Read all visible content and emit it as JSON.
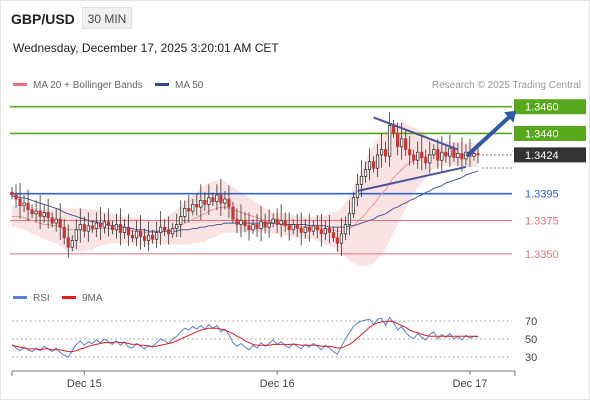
{
  "header": {
    "pair": "GBP/USD",
    "timeframe": "30 MIN"
  },
  "datetime": "Wednesday, December 17, 2025 3:20:01 AM CET",
  "legend": {
    "bollinger": "MA 20 + Bollinger Bands",
    "ma50": "MA 50",
    "credit": "Research © 2025 Trading Central"
  },
  "colors": {
    "resistance": "#58a81c",
    "support_blue": "#2c64e0",
    "support_red": "#e8707a",
    "band_fill": "#fbd9d9",
    "ma20": "#e89898",
    "ma50": "#4f5b92",
    "arrow": "#2e5aa8",
    "current": "#333333",
    "candle_up": "#222222",
    "candle_down": "#cc3333",
    "rsi": "#5b7fd6",
    "rsi_ma": "#e02020"
  },
  "rsi_legend": {
    "rsi": "RSI",
    "ma": "9MA"
  },
  "chart_data": [
    {
      "type": "candlestick",
      "title": "GBP/USD 30 MIN",
      "ylim": [
        1.3332,
        1.3468
      ],
      "levels": [
        {
          "value": 1.346,
          "label": "1.3460",
          "kind": "resistance"
        },
        {
          "value": 1.344,
          "label": "1.3440",
          "kind": "resistance"
        },
        {
          "value": 1.3424,
          "label": "1.3424",
          "kind": "current"
        },
        {
          "value": 1.3395,
          "label": "1.3395",
          "kind": "support_blue"
        },
        {
          "value": 1.3375,
          "label": "1.3375",
          "kind": "support_red"
        },
        {
          "value": 1.335,
          "label": "1.3350",
          "kind": "support_red"
        }
      ],
      "x_ticks": [
        {
          "index": 18,
          "label": "Dec 15"
        },
        {
          "index": 66,
          "label": "Dec 16"
        },
        {
          "index": 114,
          "label": "Dec 17"
        }
      ],
      "closes": [
        1.3394,
        1.3391,
        1.3386,
        1.3388,
        1.3383,
        1.338,
        1.3382,
        1.3378,
        1.3381,
        1.3377,
        1.3373,
        1.3376,
        1.337,
        1.3362,
        1.3355,
        1.336,
        1.3368,
        1.3372,
        1.3367,
        1.3371,
        1.3369,
        1.3373,
        1.337,
        1.3374,
        1.3371,
        1.3368,
        1.3372,
        1.3366,
        1.337,
        1.3364,
        1.3362,
        1.3367,
        1.3363,
        1.336,
        1.3364,
        1.3361,
        1.3366,
        1.337,
        1.3368,
        1.3365,
        1.3369,
        1.3372,
        1.3378,
        1.3384,
        1.3382,
        1.3387,
        1.3385,
        1.339,
        1.3387,
        1.3392,
        1.3389,
        1.3394,
        1.3388,
        1.3391,
        1.3385,
        1.3376,
        1.3372,
        1.3375,
        1.3371,
        1.3368,
        1.3372,
        1.3369,
        1.3374,
        1.337,
        1.3373,
        1.3376,
        1.3372,
        1.3375,
        1.3371,
        1.3368,
        1.3372,
        1.3369,
        1.3366,
        1.337,
        1.3367,
        1.3371,
        1.3368,
        1.3365,
        1.3369,
        1.3366,
        1.3362,
        1.3358,
        1.3365,
        1.3372,
        1.338,
        1.3392,
        1.3402,
        1.3408,
        1.3413,
        1.3419,
        1.3414,
        1.3424,
        1.3428,
        1.3423,
        1.3446,
        1.344,
        1.343,
        1.3436,
        1.3428,
        1.3424,
        1.342,
        1.3426,
        1.3422,
        1.3418,
        1.3424,
        1.3428,
        1.342,
        1.3426,
        1.3423,
        1.3429,
        1.3422,
        1.3425,
        1.3421,
        1.3426,
        1.3423,
        1.3425,
        1.3424
      ],
      "ma20": [
        1.3378,
        1.3378,
        1.3378,
        1.3377,
        1.3376,
        1.3375,
        1.3374,
        1.3373,
        1.3372,
        1.3372,
        1.3371,
        1.3371,
        1.337,
        1.3369,
        1.3368,
        1.3368,
        1.3368,
        1.3368,
        1.3368,
        1.3368,
        1.3368,
        1.3369,
        1.3369,
        1.3369,
        1.3369,
        1.3369,
        1.3369,
        1.3368,
        1.3368,
        1.3368,
        1.3367,
        1.3367,
        1.3367,
        1.3366,
        1.3366,
        1.3366,
        1.3366,
        1.3367,
        1.3367,
        1.3368,
        1.3369,
        1.337,
        1.3371,
        1.3373,
        1.3374,
        1.3376,
        1.3377,
        1.3379,
        1.338,
        1.3382,
        1.3383,
        1.3384,
        1.3385,
        1.3385,
        1.3384,
        1.3383,
        1.3382,
        1.3381,
        1.338,
        1.3379,
        1.3378,
        1.3377,
        1.3376,
        1.3375,
        1.3374,
        1.3373,
        1.3373,
        1.3372,
        1.3372,
        1.3371,
        1.3371,
        1.337,
        1.337,
        1.337,
        1.3369,
        1.3369,
        1.3369,
        1.3369,
        1.3368,
        1.3368,
        1.3368,
        1.3367,
        1.3367,
        1.3368,
        1.3369,
        1.3371,
        1.3374,
        1.3377,
        1.338,
        1.3384,
        1.3387,
        1.3391,
        1.3395,
        1.3398,
        1.3403,
        1.3407,
        1.341,
        1.3413,
        1.3416,
        1.3418,
        1.342,
        1.3421,
        1.3422,
        1.3423,
        1.3424,
        1.3425,
        1.3425,
        1.3425,
        1.3425,
        1.3425,
        1.3425,
        1.3425,
        1.3424,
        1.3424,
        1.3424,
        1.3424,
        1.3424
      ],
      "ma50": [
        1.3393,
        1.3393,
        1.3392,
        1.3392,
        1.3391,
        1.339,
        1.3389,
        1.3388,
        1.3387,
        1.3386,
        1.3385,
        1.3384,
        1.3383,
        1.3381,
        1.338,
        1.3379,
        1.3378,
        1.3377,
        1.3376,
        1.3375,
        1.3374,
        1.3374,
        1.3373,
        1.3372,
        1.3372,
        1.3371,
        1.3371,
        1.337,
        1.337,
        1.3369,
        1.3369,
        1.3368,
        1.3368,
        1.3368,
        1.3367,
        1.3367,
        1.3367,
        1.3367,
        1.3367,
        1.3367,
        1.3367,
        1.3367,
        1.3368,
        1.3368,
        1.3368,
        1.3369,
        1.3369,
        1.337,
        1.337,
        1.3371,
        1.3371,
        1.3372,
        1.3372,
        1.3373,
        1.3373,
        1.3373,
        1.3373,
        1.3373,
        1.3373,
        1.3373,
        1.3373,
        1.3373,
        1.3373,
        1.3373,
        1.3373,
        1.3373,
        1.3373,
        1.3373,
        1.3372,
        1.3372,
        1.3372,
        1.3372,
        1.3372,
        1.3372,
        1.3371,
        1.3371,
        1.3371,
        1.3371,
        1.3371,
        1.337,
        1.337,
        1.337,
        1.337,
        1.337,
        1.3371,
        1.3371,
        1.3372,
        1.3373,
        1.3374,
        1.3375,
        1.3376,
        1.3378,
        1.3379,
        1.338,
        1.3382,
        1.3384,
        1.3385,
        1.3387,
        1.3388,
        1.339,
        1.3391,
        1.3393,
        1.3394,
        1.3396,
        1.3397,
        1.3399,
        1.34,
        1.3401,
        1.3403,
        1.3404,
        1.3405,
        1.3406,
        1.3407,
        1.3409,
        1.341,
        1.3411,
        1.3412
      ],
      "band_width": [
        0.0008,
        0.0008,
        0.0009,
        0.0009,
        0.0009,
        0.001,
        0.001,
        0.0011,
        0.0011,
        0.0012,
        0.0012,
        0.0013,
        0.0014,
        0.0015,
        0.0016,
        0.0016,
        0.0016,
        0.0016,
        0.0016,
        0.0015,
        0.0015,
        0.0014,
        0.0013,
        0.0012,
        0.0012,
        0.0011,
        0.0011,
        0.001,
        0.001,
        0.001,
        0.001,
        0.001,
        0.001,
        0.001,
        0.0009,
        0.0009,
        0.0009,
        0.0009,
        0.001,
        0.0011,
        0.0012,
        0.0013,
        0.0014,
        0.0016,
        0.0017,
        0.0018,
        0.0019,
        0.002,
        0.0021,
        0.0021,
        0.0021,
        0.0021,
        0.002,
        0.0019,
        0.0018,
        0.0017,
        0.0016,
        0.0015,
        0.0014,
        0.0013,
        0.0012,
        0.0011,
        0.001,
        0.0009,
        0.0009,
        0.0008,
        0.0008,
        0.0008,
        0.0008,
        0.0008,
        0.0008,
        0.0008,
        0.0008,
        0.0008,
        0.0008,
        0.0008,
        0.0009,
        0.001,
        0.0011,
        0.0012,
        0.0013,
        0.0015,
        0.0017,
        0.002,
        0.0024,
        0.0028,
        0.0032,
        0.0036,
        0.0039,
        0.0042,
        0.0044,
        0.0045,
        0.0045,
        0.0044,
        0.0043,
        0.0041,
        0.0038,
        0.0035,
        0.0032,
        0.0028,
        0.0025,
        0.0022,
        0.0019,
        0.0016,
        0.0013,
        0.0011,
        0.001,
        0.0009,
        0.0009,
        0.0009,
        0.0009,
        0.0009,
        0.0009,
        0.0009,
        0.0009,
        0.0009,
        0.0009
      ],
      "triangle": {
        "upper": [
          [
            90,
            1.3452
          ],
          [
            111,
            1.3428
          ]
        ],
        "lower": [
          [
            86,
            1.3397
          ],
          [
            113,
            1.3415
          ]
        ]
      },
      "forecast_arrow": [
        [
          113,
          1.3424
        ],
        [
          120,
          1.3457
        ]
      ]
    },
    {
      "type": "line",
      "title": "RSI",
      "ylim": [
        20,
        80
      ],
      "y_ticks": [
        30,
        50,
        70
      ],
      "guides": [
        70,
        50,
        30
      ],
      "rsi": [
        44,
        40,
        37,
        41,
        38,
        36,
        40,
        37,
        42,
        39,
        36,
        40,
        35,
        32,
        30,
        37,
        44,
        48,
        43,
        47,
        45,
        49,
        46,
        50,
        47,
        44,
        48,
        43,
        47,
        41,
        40,
        45,
        42,
        39,
        43,
        41,
        46,
        50,
        48,
        45,
        50,
        53,
        58,
        62,
        60,
        64,
        61,
        65,
        61,
        66,
        62,
        65,
        58,
        61,
        55,
        46,
        42,
        45,
        41,
        38,
        43,
        40,
        46,
        42,
        45,
        49,
        44,
        47,
        43,
        40,
        45,
        42,
        39,
        44,
        41,
        45,
        42,
        38,
        43,
        40,
        36,
        33,
        42,
        50,
        57,
        64,
        68,
        70,
        71,
        72,
        66,
        72,
        73,
        65,
        74,
        68,
        60,
        64,
        57,
        53,
        50,
        56,
        52,
        49,
        55,
        58,
        50,
        55,
        52,
        56,
        50,
        53,
        49,
        54,
        51,
        53,
        52
      ],
      "rsi_ma": [
        43,
        42,
        41,
        40,
        39,
        39,
        39,
        38,
        39,
        39,
        38,
        38,
        38,
        37,
        36,
        36,
        37,
        39,
        40,
        42,
        43,
        44,
        45,
        46,
        46,
        46,
        47,
        46,
        46,
        45,
        44,
        44,
        43,
        43,
        42,
        42,
        42,
        43,
        44,
        45,
        46,
        48,
        50,
        52,
        54,
        56,
        58,
        60,
        61,
        62,
        62,
        62,
        61,
        60,
        58,
        56,
        53,
        51,
        48,
        46,
        44,
        43,
        43,
        43,
        43,
        44,
        44,
        44,
        44,
        44,
        44,
        44,
        43,
        43,
        43,
        43,
        43,
        42,
        42,
        42,
        41,
        40,
        40,
        42,
        44,
        47,
        51,
        55,
        59,
        63,
        66,
        68,
        69,
        69,
        70,
        69,
        67,
        65,
        63,
        60,
        58,
        57,
        55,
        54,
        53,
        53,
        53,
        53,
        53,
        53,
        53,
        53,
        53,
        53,
        53,
        53,
        53
      ]
    }
  ]
}
